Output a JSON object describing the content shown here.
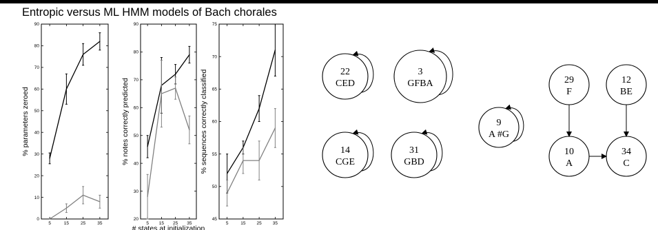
{
  "title": "Entropic versus ML HMM models of Bach chorales",
  "colors": {
    "series_entropic": "#000000",
    "series_ml": "#808080"
  },
  "chart_data": [
    {
      "type": "line",
      "ylabel": "% parameters zeroed",
      "xlabel": "",
      "x": [
        5,
        15,
        25,
        35
      ],
      "xlim": [
        0,
        40
      ],
      "ylim": [
        0,
        90
      ],
      "yticks": [
        0,
        10,
        20,
        30,
        40,
        50,
        60,
        70,
        80,
        90
      ],
      "series": [
        {
          "values": [
            28,
            60,
            76,
            82
          ],
          "err": [
            2.5,
            7,
            5,
            4
          ],
          "color": "#000000"
        },
        {
          "values": [
            0,
            5,
            11,
            8
          ],
          "err": [
            0,
            2,
            4,
            3
          ],
          "color": "#808080"
        }
      ]
    },
    {
      "type": "line",
      "ylabel": "% notes correctly predicted",
      "xlabel": "# states at initialization",
      "x": [
        5,
        15,
        25,
        35
      ],
      "xlim": [
        0,
        40
      ],
      "ylim": [
        20,
        90
      ],
      "yticks": [
        20,
        30,
        40,
        50,
        60,
        70,
        80,
        90
      ],
      "series": [
        {
          "values": [
            46,
            68,
            72,
            79
          ],
          "err": [
            4,
            10,
            3.5,
            3
          ],
          "color": "#000000"
        },
        {
          "values": [
            28,
            65,
            67,
            52
          ],
          "err": [
            8,
            12,
            4,
            5
          ],
          "color": "#808080"
        }
      ]
    },
    {
      "type": "line",
      "ylabel": "% sequences correctly classified",
      "xlabel": "",
      "x": [
        5,
        15,
        25,
        35
      ],
      "xlim": [
        0,
        40
      ],
      "ylim": [
        45,
        75
      ],
      "yticks": [
        45,
        50,
        55,
        60,
        65,
        70,
        75
      ],
      "series": [
        {
          "values": [
            52,
            56,
            62,
            71
          ],
          "err": [
            3,
            1,
            2,
            4
          ],
          "color": "#000000"
        },
        {
          "values": [
            49,
            54,
            54,
            59
          ],
          "err": [
            2,
            2,
            3,
            3
          ],
          "color": "#808080"
        }
      ]
    }
  ],
  "diagram": {
    "nodes": [
      {
        "id": "n22",
        "count": "22",
        "notes": "CED",
        "self_loop": true
      },
      {
        "id": "n3",
        "count": "3",
        "notes": "GFBA",
        "self_loop": true
      },
      {
        "id": "n14",
        "count": "14",
        "notes": "CGE",
        "self_loop": true
      },
      {
        "id": "n31",
        "count": "31",
        "notes": "GBD",
        "self_loop": true
      },
      {
        "id": "n9",
        "count": "9",
        "notes": "A #G",
        "self_loop": true
      },
      {
        "id": "n29",
        "count": "29",
        "notes": "F",
        "self_loop": false
      },
      {
        "id": "n12",
        "count": "12",
        "notes": "BE",
        "self_loop": false
      },
      {
        "id": "n10",
        "count": "10",
        "notes": "A",
        "self_loop": false
      },
      {
        "id": "n34",
        "count": "34",
        "notes": "C",
        "self_loop": false
      }
    ],
    "edges": [
      {
        "from": "n29",
        "to": "n10"
      },
      {
        "from": "n12",
        "to": "n34"
      },
      {
        "from": "n10",
        "to": "n34"
      }
    ]
  }
}
